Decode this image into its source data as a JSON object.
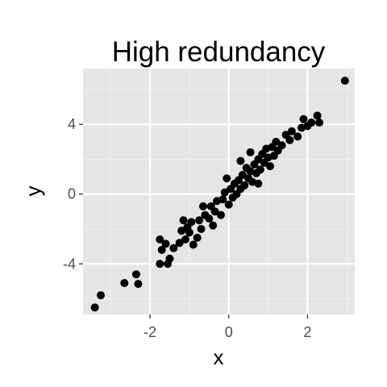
{
  "chart_data": {
    "type": "scatter",
    "title": "High redundancy",
    "xlabel": "x",
    "ylabel": "y",
    "xlim": [
      -3.7,
      3.2
    ],
    "ylim": [
      -6.9,
      7.2
    ],
    "x_ticks": [
      -2,
      0,
      2
    ],
    "x_tick_labels": [
      "-2",
      "0",
      "2"
    ],
    "y_ticks": [
      -4,
      0,
      4
    ],
    "y_tick_labels": [
      "-4",
      "0",
      "4"
    ],
    "grid": true,
    "legend": "none",
    "colors": {
      "panel": "#e5e5e5",
      "grid": "#ffffff",
      "point": "#000000",
      "tick_text": "#4d4d4d"
    },
    "points": [
      [
        -3.4,
        -6.5
      ],
      [
        -3.25,
        -5.8
      ],
      [
        -2.65,
        -5.1
      ],
      [
        -2.35,
        -4.6
      ],
      [
        -2.3,
        -5.15
      ],
      [
        -1.75,
        -4.0
      ],
      [
        -1.7,
        -3.2
      ],
      [
        -1.75,
        -2.6
      ],
      [
        -1.55,
        -4.0
      ],
      [
        -1.6,
        -2.85
      ],
      [
        -1.5,
        -3.7
      ],
      [
        -1.4,
        -3.1
      ],
      [
        -1.25,
        -2.8
      ],
      [
        -1.15,
        -1.5
      ],
      [
        -1.1,
        -2.6
      ],
      [
        -1.05,
        -1.9
      ],
      [
        -1.0,
        -2.2
      ],
      [
        -0.95,
        -1.6
      ],
      [
        -0.9,
        -2.9
      ],
      [
        -0.8,
        -2.5
      ],
      [
        -0.75,
        -1.5
      ],
      [
        -0.7,
        -2.0
      ],
      [
        -0.6,
        -1.2
      ],
      [
        -0.5,
        -1.4
      ],
      [
        -0.45,
        -0.7
      ],
      [
        -0.4,
        -1.8
      ],
      [
        -0.35,
        -1.0
      ],
      [
        -0.3,
        -0.4
      ],
      [
        -0.2,
        -1.2
      ],
      [
        -0.15,
        -0.3
      ],
      [
        -0.1,
        0.1
      ],
      [
        0.0,
        -0.6
      ],
      [
        0.05,
        0.3
      ],
      [
        0.1,
        -0.2
      ],
      [
        0.15,
        0.6
      ],
      [
        0.2,
        0.0
      ],
      [
        0.25,
        0.8
      ],
      [
        0.3,
        0.3
      ],
      [
        0.35,
        1.1
      ],
      [
        0.4,
        0.5
      ],
      [
        0.45,
        1.5
      ],
      [
        0.5,
        0.9
      ],
      [
        0.55,
        1.3
      ],
      [
        0.6,
        0.7
      ],
      [
        0.65,
        1.7
      ],
      [
        0.7,
        1.2
      ],
      [
        0.75,
        2.0
      ],
      [
        0.8,
        1.4
      ],
      [
        0.85,
        2.3
      ],
      [
        0.9,
        1.8
      ],
      [
        0.95,
        2.6
      ],
      [
        1.0,
        2.1
      ],
      [
        1.05,
        1.6
      ],
      [
        1.1,
        2.7
      ],
      [
        1.15,
        2.2
      ],
      [
        1.2,
        3.0
      ],
      [
        1.25,
        2.5
      ],
      [
        1.35,
        2.8
      ],
      [
        1.45,
        3.4
      ],
      [
        1.55,
        3.1
      ],
      [
        1.6,
        3.6
      ],
      [
        1.75,
        3.3
      ],
      [
        1.85,
        3.8
      ],
      [
        1.9,
        4.3
      ],
      [
        2.0,
        3.9
      ],
      [
        2.1,
        4.1
      ],
      [
        2.25,
        4.5
      ],
      [
        2.3,
        4.1
      ],
      [
        2.95,
        6.5
      ],
      [
        0.3,
        1.9
      ],
      [
        -0.05,
        0.9
      ],
      [
        0.55,
        2.4
      ],
      [
        -1.2,
        -2.1
      ],
      [
        -0.65,
        -0.7
      ],
      [
        0.75,
        0.6
      ]
    ]
  }
}
